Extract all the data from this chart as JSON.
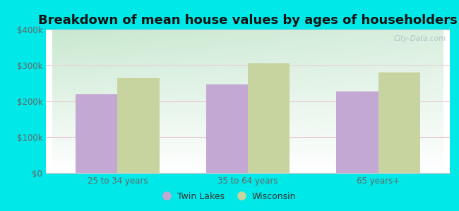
{
  "title": "Breakdown of mean house values by ages of householders",
  "categories": [
    "25 to 34 years",
    "35 to 64 years",
    "65 years+"
  ],
  "twin_lakes_values": [
    220000,
    248000,
    228000
  ],
  "wisconsin_values": [
    265000,
    305000,
    280000
  ],
  "twin_lakes_color": "#c4a8d4",
  "wisconsin_color": "#c8d4a0",
  "ylim": [
    0,
    400000
  ],
  "yticks": [
    0,
    100000,
    200000,
    300000,
    400000
  ],
  "ytick_labels": [
    "$0",
    "$100k",
    "$200k",
    "$300k",
    "$400k"
  ],
  "background_outer": "#00e8e8",
  "bar_width": 0.32,
  "legend_twin_lakes": "Twin Lakes",
  "legend_wisconsin": "Wisconsin",
  "title_fontsize": 13,
  "tick_fontsize": 8.5,
  "legend_fontsize": 9,
  "watermark": "City-Data.com"
}
